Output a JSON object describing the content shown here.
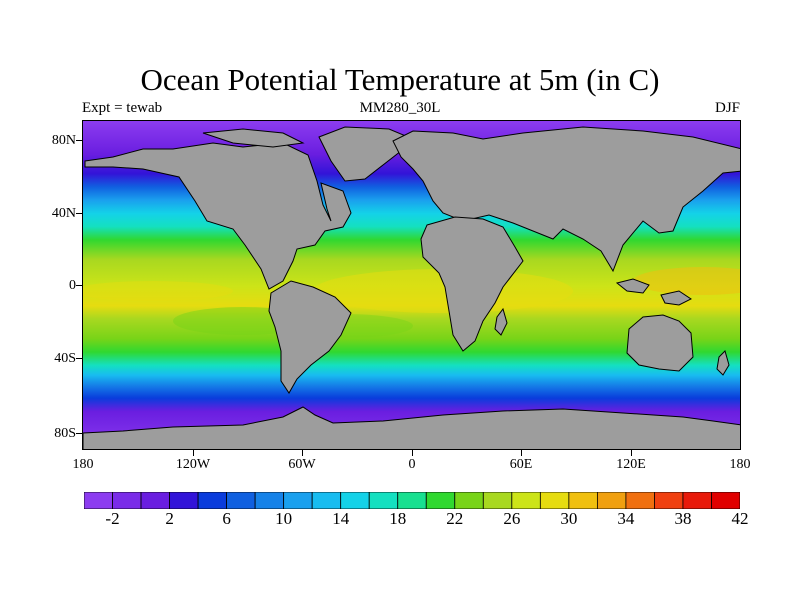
{
  "header": {
    "title": "Ocean Potential Temperature at 5m (in C)",
    "left_label": "Expt = tewab",
    "center_label": "MM280_30L",
    "right_label": "DJF"
  },
  "axes": {
    "lat_ticks": [
      "80N",
      "40N",
      "0",
      "40S",
      "80S"
    ],
    "lon_ticks": [
      "180",
      "120W",
      "60W",
      "0",
      "60E",
      "120E",
      "180"
    ]
  },
  "colorbar": {
    "colors": [
      "#8c3cf0",
      "#7a2ce8",
      "#6a1ee0",
      "#3214d8",
      "#0a3cdc",
      "#1060e0",
      "#1682e8",
      "#1aa0ee",
      "#18bcf0",
      "#14d2e8",
      "#14e0c0",
      "#18e090",
      "#30d830",
      "#78d418",
      "#a8d820",
      "#cce418",
      "#e6dc10",
      "#f0c010",
      "#f0a010",
      "#f07010",
      "#f04010",
      "#e81a0a",
      "#e00000"
    ],
    "labels": [
      "-2",
      "2",
      "6",
      "10",
      "14",
      "18",
      "22",
      "26",
      "30",
      "34",
      "38",
      "42"
    ],
    "land_color": "#9d9d9d"
  }
}
